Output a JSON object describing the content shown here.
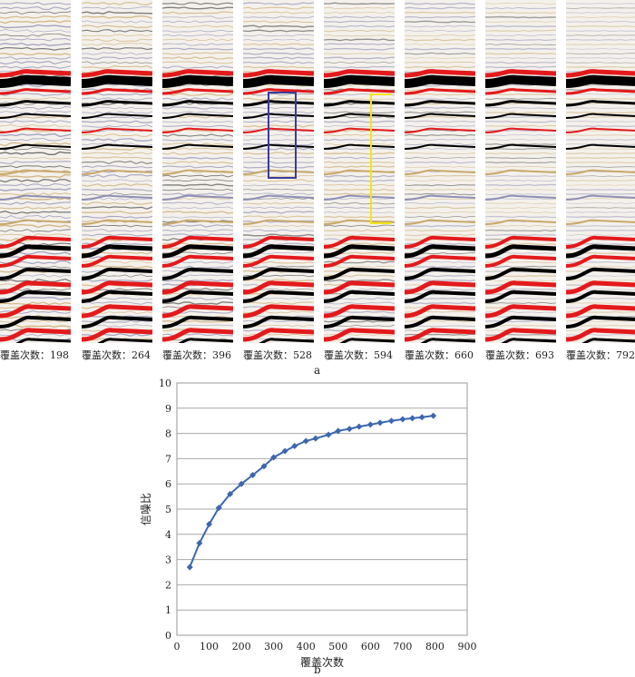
{
  "part_a": {
    "label": "a",
    "caption_prefix": "覆盖次数：",
    "panels": [
      {
        "fold": "198",
        "caption": "覆盖次数：198"
      },
      {
        "fold": "264",
        "caption": "覆盖次数：264"
      },
      {
        "fold": "396",
        "caption": "覆盖次数：396"
      },
      {
        "fold": "528",
        "caption": "覆盖次数：528",
        "highlight": "blue-box"
      },
      {
        "fold": "594",
        "caption": "覆盖次数：594",
        "highlight": "yellow-bracket"
      },
      {
        "fold": "660",
        "caption": "覆盖次数：660"
      },
      {
        "fold": "693",
        "caption": "覆盖次数：693"
      },
      {
        "fold": "792",
        "caption": "覆盖次数：792"
      }
    ],
    "colors": {
      "strong_positive": "#e31a1c",
      "strong_negative": "#000000",
      "weak": "#c9a86a",
      "noise": "#8f8fb5",
      "blue_box": "#3b3b9c",
      "yellow_bracket": "#f2e51a"
    }
  },
  "part_b": {
    "label": "b"
  },
  "chart_data": {
    "type": "line",
    "xlabel": "覆盖次数",
    "ylabel": "信噪比",
    "xlim": [
      0,
      900
    ],
    "ylim": [
      0,
      10
    ],
    "xticks": [
      0,
      100,
      200,
      300,
      400,
      500,
      600,
      700,
      800,
      900
    ],
    "yticks": [
      0,
      1,
      2,
      3,
      4,
      5,
      6,
      7,
      8,
      9,
      10
    ],
    "grid": "horizontal",
    "marker": "diamond",
    "color": "#3b67b0",
    "series": [
      {
        "x": [
          40,
          70,
          100,
          130,
          165,
          200,
          235,
          270,
          300,
          335,
          365,
          400,
          430,
          470,
          500,
          535,
          565,
          600,
          630,
          665,
          700,
          730,
          760,
          795
        ],
        "y": [
          2.7,
          3.65,
          4.4,
          5.05,
          5.6,
          6.0,
          6.35,
          6.7,
          7.05,
          7.3,
          7.5,
          7.7,
          7.8,
          7.95,
          8.1,
          8.18,
          8.27,
          8.35,
          8.42,
          8.5,
          8.56,
          8.6,
          8.64,
          8.7
        ]
      }
    ]
  }
}
